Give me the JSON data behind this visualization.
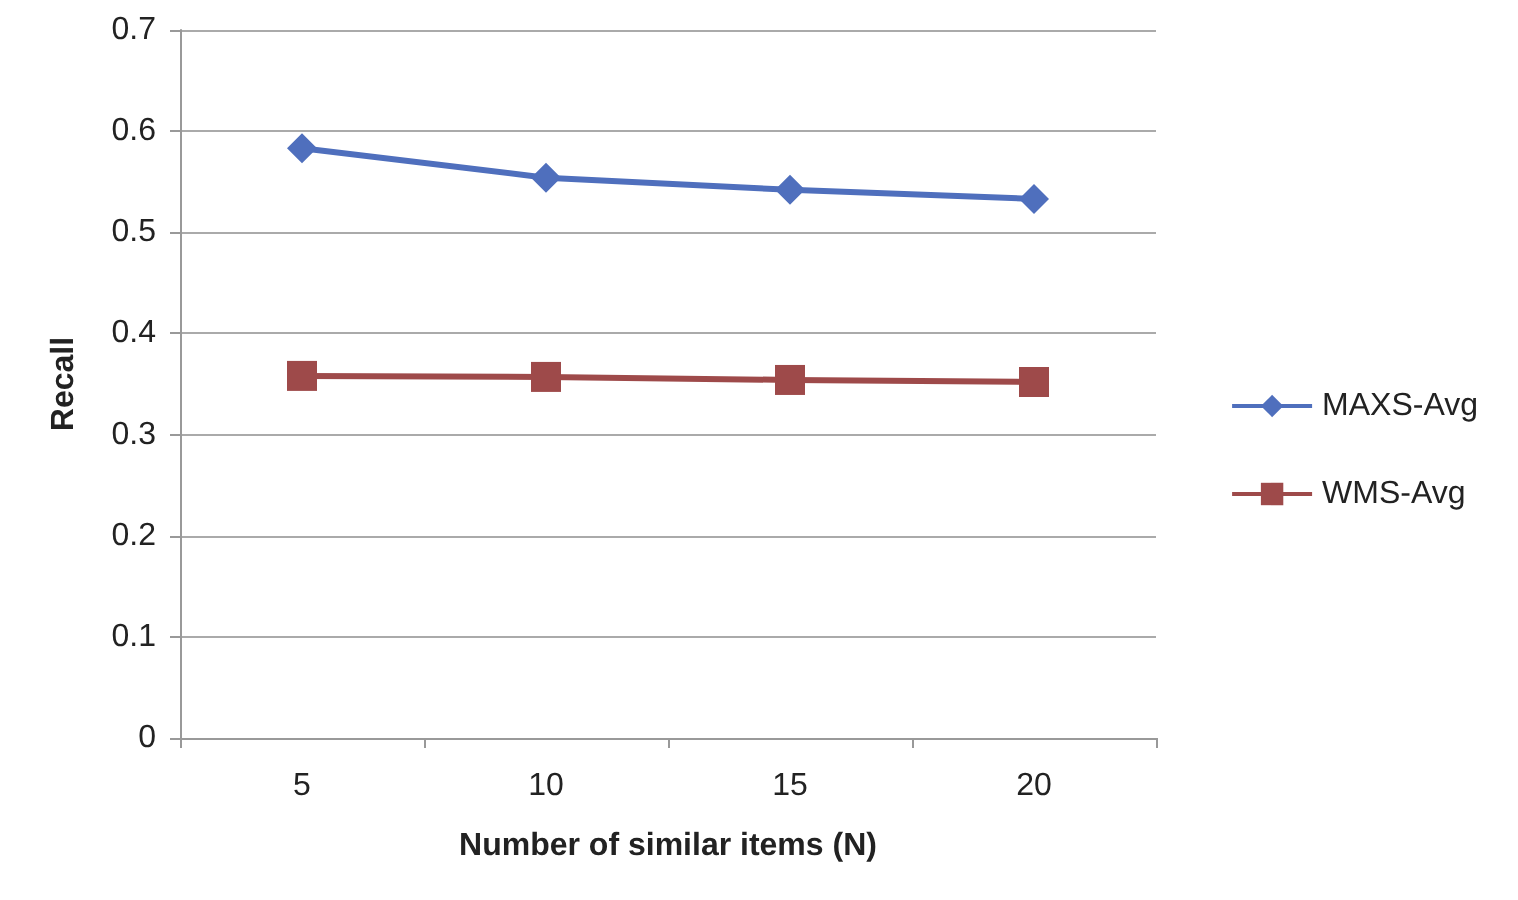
{
  "chart_data": {
    "type": "line",
    "xlabel": "Number of similar items (N)",
    "ylabel": "Recall",
    "categories": [
      "5",
      "10",
      "15",
      "20"
    ],
    "series": [
      {
        "name": "MAXS-Avg",
        "color": "#4f6fbd",
        "marker": "diamond",
        "values": [
          0.583,
          0.554,
          0.542,
          0.533
        ]
      },
      {
        "name": "WMS-Avg",
        "color": "#9e4a4a",
        "marker": "square",
        "values": [
          0.358,
          0.357,
          0.354,
          0.352
        ]
      }
    ],
    "ylim": [
      0,
      0.7
    ],
    "yticks": [
      0,
      0.1,
      0.2,
      0.3,
      0.4,
      0.5,
      0.6,
      0.7
    ],
    "grid": "y",
    "legend": "right"
  }
}
